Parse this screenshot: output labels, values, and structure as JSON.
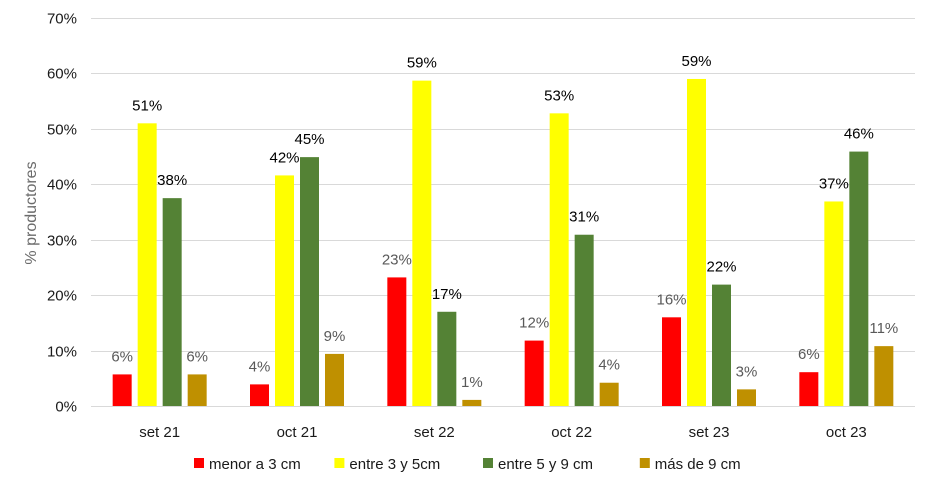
{
  "chart_data": {
    "type": "bar",
    "ylabel": "% productores",
    "ylim": [
      0,
      70
    ],
    "y_ticks": [
      "0%",
      "10%",
      "20%",
      "30%",
      "40%",
      "50%",
      "60%",
      "70%"
    ],
    "grid": true,
    "legend_position": "bottom",
    "categories": [
      "set 21",
      "oct 21",
      "set 22",
      "oct 22",
      "set 23",
      "oct 23"
    ],
    "series": [
      {
        "name": "menor a 3 cm",
        "color": "#ff0000",
        "label_color": "#595959",
        "values": [
          5.7,
          3.9,
          23.2,
          11.8,
          16,
          6.1
        ],
        "labels": [
          "6%",
          "4%",
          "23%",
          "12%",
          "16%",
          "6%"
        ]
      },
      {
        "name": "entre 3 y 5cm",
        "color": "#ffff00",
        "label_color": "#000000",
        "values": [
          51,
          41.6,
          58.7,
          52.8,
          59,
          36.9
        ],
        "labels": [
          "51%",
          "42%",
          "59%",
          "53%",
          "59%",
          "37%"
        ]
      },
      {
        "name": "entre 5 y 9 cm",
        "color": "#548235",
        "label_color": "#000000",
        "values": [
          37.5,
          44.9,
          17,
          30.9,
          21.9,
          45.9
        ],
        "labels": [
          "38%",
          "45%",
          "17%",
          "31%",
          "22%",
          "46%"
        ]
      },
      {
        "name": "más de 9 cm",
        "color": "#bf9000",
        "label_color": "#595959",
        "values": [
          5.7,
          9.4,
          1.1,
          4.2,
          3,
          10.8
        ],
        "labels": [
          "6%",
          "9%",
          "1%",
          "4%",
          "3%",
          "11%"
        ]
      }
    ]
  }
}
